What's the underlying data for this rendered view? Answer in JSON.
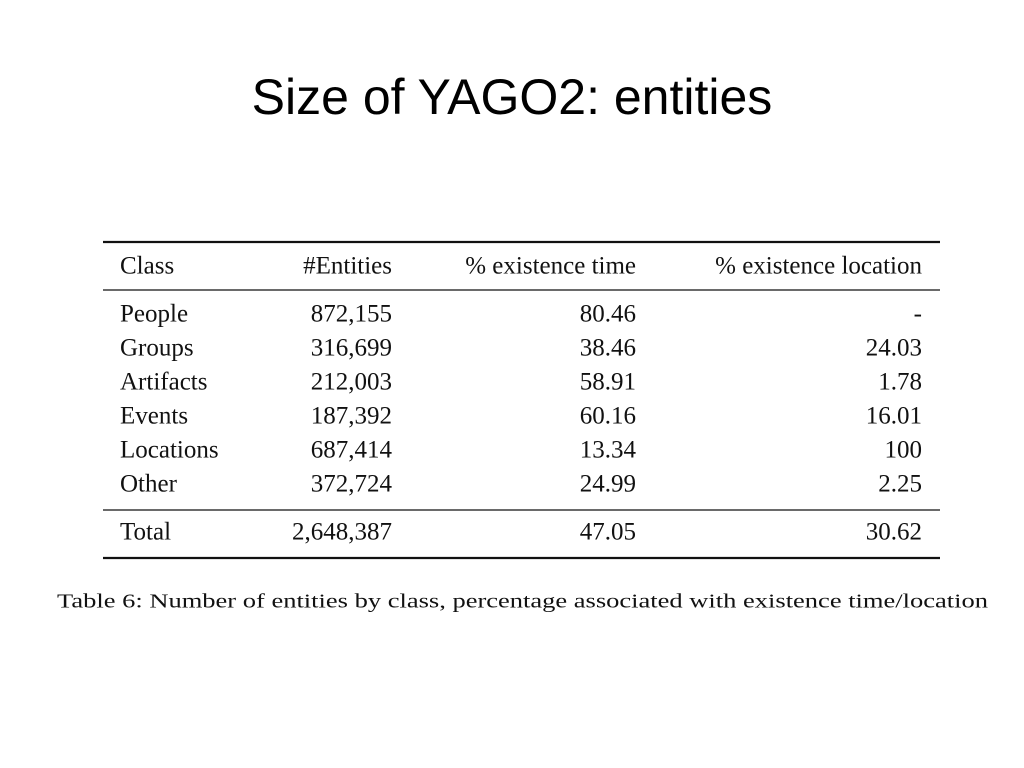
{
  "title": "Size of YAGO2: entities",
  "table": {
    "header": [
      "Class",
      "#Entities",
      "% existence time",
      "% existence location"
    ],
    "rows": [
      [
        "People",
        "872,155",
        "80.46",
        "-"
      ],
      [
        "Groups",
        "316,699",
        "38.46",
        "24.03"
      ],
      [
        "Artifacts",
        "212,003",
        "58.91",
        "1.78"
      ],
      [
        "Events",
        "187,392",
        "60.16",
        "16.01"
      ],
      [
        "Locations",
        "687,414",
        "13.34",
        "100"
      ],
      [
        "Other",
        "372,724",
        "24.99",
        "2.25"
      ]
    ],
    "total": [
      "Total",
      "2,648,387",
      "47.05",
      "30.62"
    ]
  },
  "caption": "Table 6: Number of entities by class, percentage associated with existence time/location"
}
